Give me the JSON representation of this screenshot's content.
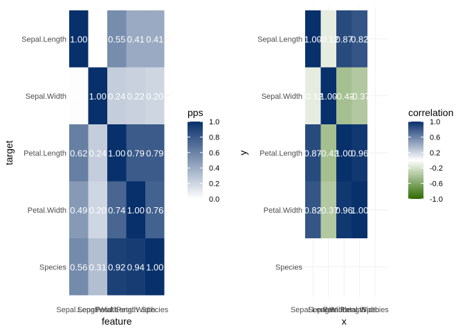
{
  "chart_data": [
    {
      "type": "heatmap",
      "xlabel": "feature",
      "ylabel": "target",
      "x_categories": [
        "Sepal.Length",
        "Sepal.Width",
        "Petal.Length",
        "Petal.Width",
        "Species"
      ],
      "y_categories": [
        "Sepal.Length",
        "Sepal.Width",
        "Petal.Length",
        "Petal.Width",
        "Species"
      ],
      "values": [
        [
          1.0,
          0.0,
          0.55,
          0.41,
          0.41
        ],
        [
          0.01,
          1.0,
          0.24,
          0.22,
          0.2
        ],
        [
          0.62,
          0.24,
          1.0,
          0.79,
          0.79
        ],
        [
          0.49,
          0.2,
          0.74,
          1.0,
          0.76
        ],
        [
          0.56,
          0.31,
          0.92,
          0.94,
          1.0
        ]
      ],
      "labels": [
        [
          "1.00",
          "0.0",
          "0.55",
          "0.41",
          "0.41"
        ],
        [
          "0.01",
          "1.00",
          "0.24",
          "0.22",
          "0.20"
        ],
        [
          "0.62",
          "0.24",
          "1.00",
          "0.79",
          "0.79"
        ],
        [
          "0.49",
          "0.20",
          "0.74",
          "1.00",
          "0.76"
        ],
        [
          "0.56",
          "0.31",
          "0.92",
          "0.94",
          "1.00"
        ]
      ],
      "legend": {
        "title": "pps",
        "placement": "right",
        "range": [
          0,
          1
        ],
        "ticks": [
          "0.0",
          "0.2",
          "0.4",
          "0.6",
          "0.8",
          "1.0"
        ],
        "colors": {
          "low": "#ffffff",
          "high": "#08306b"
        }
      }
    },
    {
      "type": "heatmap",
      "xlabel": "x",
      "ylabel": "y",
      "x_categories": [
        "Sepal.Length",
        "Sepal.Width",
        "Petal.Length",
        "Petal.Width",
        "Species"
      ],
      "y_categories": [
        "Sepal.Length",
        "Sepal.Width",
        "Petal.Length",
        "Petal.Width",
        "Species"
      ],
      "values": [
        [
          1.0,
          -0.12,
          0.87,
          0.82,
          null
        ],
        [
          -0.12,
          1.0,
          -0.43,
          -0.37,
          null
        ],
        [
          0.87,
          -0.43,
          1.0,
          0.96,
          null
        ],
        [
          0.82,
          -0.37,
          0.96,
          1.0,
          null
        ],
        [
          null,
          null,
          null,
          null,
          null
        ]
      ],
      "labels": [
        [
          "1.00",
          "-0.12",
          "0.87",
          "0.82",
          ""
        ],
        [
          "-0.12",
          "1.00",
          "-0.43",
          "-0.37",
          ""
        ],
        [
          "0.87",
          "-0.43",
          "1.00",
          "0.96",
          ""
        ],
        [
          "0.82",
          "-0.37",
          "0.96",
          "1.00",
          ""
        ],
        [
          "",
          "",
          "",
          "",
          ""
        ]
      ],
      "legend": {
        "title": "correlation",
        "placement": "right",
        "range": [
          -1,
          1
        ],
        "ticks": [
          "-1.0",
          "-0.6",
          "-0.2",
          "0.2",
          "0.6",
          "1.0"
        ],
        "colors": {
          "low": "#2e6b00",
          "mid": "#ffffff",
          "high": "#08306b"
        }
      }
    }
  ]
}
